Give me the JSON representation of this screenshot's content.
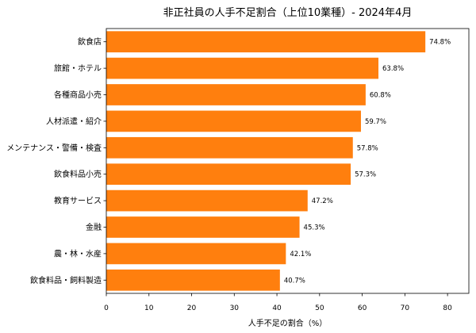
{
  "chart_data": {
    "type": "bar",
    "orientation": "horizontal",
    "title": "非正社員の人手不足割合（上位10業種）- 2024年4月",
    "xlabel": "人手不足の割合（%）",
    "ylabel": "",
    "categories": [
      "飲食店",
      "旅館・ホテル",
      "各種商品小売",
      "人材派遣・紹介",
      "メンテナンス・警備・検査",
      "飲食料品小売",
      "教育サービス",
      "金融",
      "農・林・水産",
      "飲食料品・飼料製造"
    ],
    "values": [
      74.8,
      63.8,
      60.8,
      59.7,
      57.8,
      57.3,
      47.2,
      45.3,
      42.1,
      40.7
    ],
    "value_labels": [
      "74.8%",
      "63.8%",
      "60.8%",
      "59.7%",
      "57.8%",
      "57.3%",
      "47.2%",
      "45.3%",
      "42.1%",
      "40.7%"
    ],
    "xlim": [
      0,
      85
    ],
    "xticks": [
      0,
      10,
      20,
      30,
      40,
      50,
      60,
      70,
      80
    ],
    "xtick_labels": [
      "0",
      "10",
      "20",
      "30",
      "40",
      "50",
      "60",
      "70",
      "80"
    ],
    "grid": false,
    "color": "#ff7f0e"
  }
}
